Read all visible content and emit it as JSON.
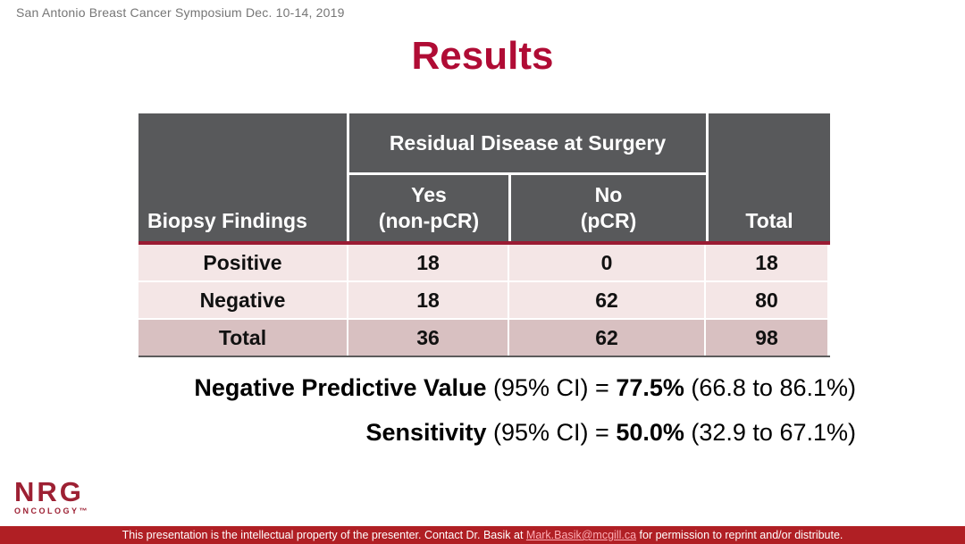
{
  "slide": {
    "conference_note": "San Antonio Breast Cancer Symposium Dec. 10-14, 2019",
    "title": "Results",
    "title_color": "#b00c35"
  },
  "table": {
    "group_header": "Residual Disease at Surgery",
    "row_header_label": "Biopsy Findings",
    "col_yes": "Yes\n(non-pCR)",
    "col_no": "No\n(pCR)",
    "col_total": "Total",
    "rows": [
      {
        "label": "Positive",
        "yes": "18",
        "no": "0",
        "total": "18"
      },
      {
        "label": "Negative",
        "yes": "18",
        "no": "62",
        "total": "80"
      },
      {
        "label": "Total",
        "yes": "36",
        "no": "62",
        "total": "98"
      }
    ],
    "colors": {
      "header_bg": "#58595b",
      "divider_red": "#9a1b33",
      "row_bg": "#f4e6e6",
      "total_row_bg": "#d8c0c1"
    }
  },
  "stats": [
    {
      "name": "Negative Predictive Value",
      "mid": " (95% CI) = ",
      "value": "77.5%",
      "ci": " (66.8 to 86.1%)"
    },
    {
      "name": "Sensitivity",
      "mid": " (95% CI) = ",
      "value": "50.0%",
      "ci": " (32.9 to 67.1%)"
    }
  ],
  "logo": {
    "name": "NRG",
    "division": "ONCOLOGY™",
    "color": "#9d2033"
  },
  "footer": {
    "before_email": "This presentation is the intellectual property of the presenter. Contact Dr. Basik at ",
    "email": "Mark.Basik@mcgill.ca",
    "after_email": " for permission to reprint and/or distribute.",
    "bar_color": "#b01f24"
  }
}
